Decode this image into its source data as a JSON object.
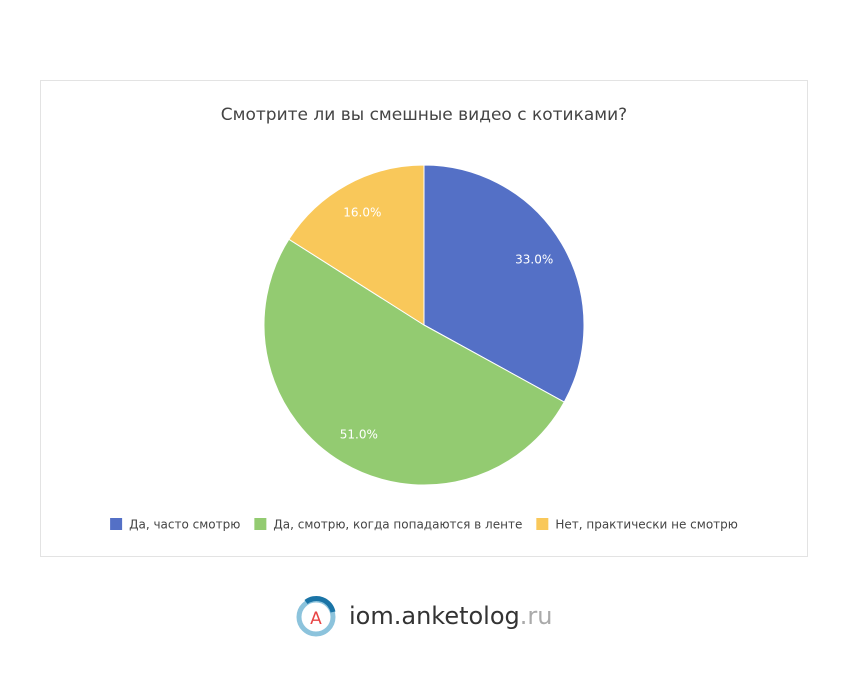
{
  "chart_data": {
    "type": "pie",
    "title": "Смотрите ли вы смешные видео с котиками?",
    "categories": [
      "Да, часто смотрю",
      "Да, смотрю, когда попадаются в ленте",
      "Нет, практически не смотрю"
    ],
    "values": [
      33,
      51,
      16
    ],
    "value_labels": [
      "33.0%",
      "51.0%",
      "16.0%"
    ],
    "colors": [
      "#5470c6",
      "#93cb71",
      "#f9c85a"
    ],
    "legend": "bottom"
  },
  "logo": {
    "icon_letter": "A",
    "name": "iom.anketolog",
    "domain": ".ru"
  }
}
